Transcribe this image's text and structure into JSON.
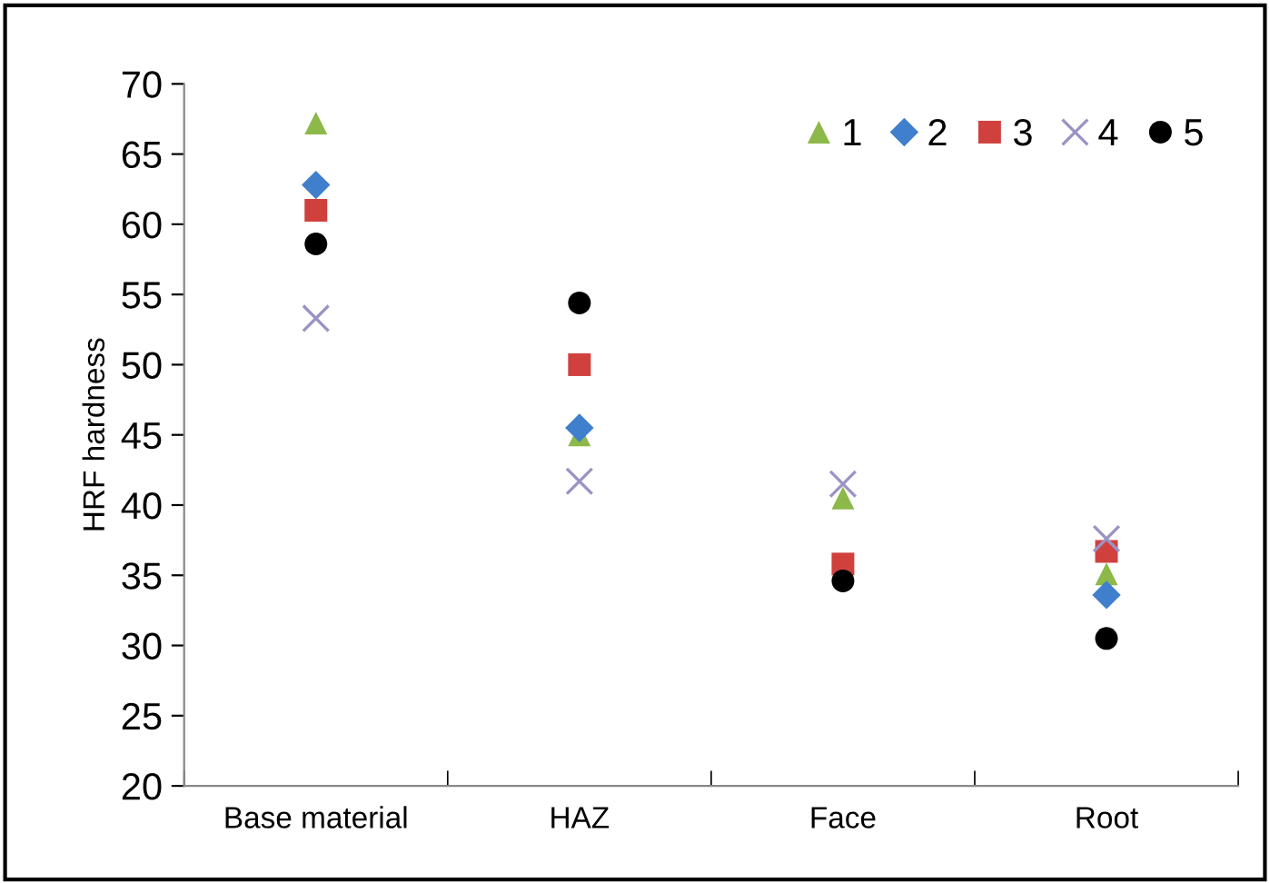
{
  "chart_data": {
    "type": "scatter",
    "ylabel": "HRF hardness",
    "categories": [
      "Base material",
      "HAZ",
      "Face",
      "Root"
    ],
    "ylim": [
      20,
      70
    ],
    "yticks": [
      20,
      25,
      30,
      35,
      40,
      45,
      50,
      55,
      60,
      65,
      70
    ],
    "grid": false,
    "legend": "top right",
    "series": [
      {
        "name": "1",
        "color": "#8db84a",
        "marker": "triangle",
        "values": [
          67.2,
          45.0,
          40.5,
          35.1
        ]
      },
      {
        "name": "2",
        "color": "#3f7fcb",
        "marker": "diamond",
        "values": [
          62.8,
          45.5,
          null,
          33.6
        ]
      },
      {
        "name": "3",
        "color": "#d0413e",
        "marker": "square",
        "values": [
          61.0,
          50.0,
          35.8,
          36.7
        ]
      },
      {
        "name": "4",
        "color": "#9a93c4",
        "marker": "cross",
        "values": [
          53.3,
          41.7,
          41.5,
          37.6
        ]
      },
      {
        "name": "5",
        "color": "#000000",
        "marker": "circle",
        "values": [
          58.6,
          54.4,
          34.6,
          30.5
        ]
      }
    ]
  }
}
